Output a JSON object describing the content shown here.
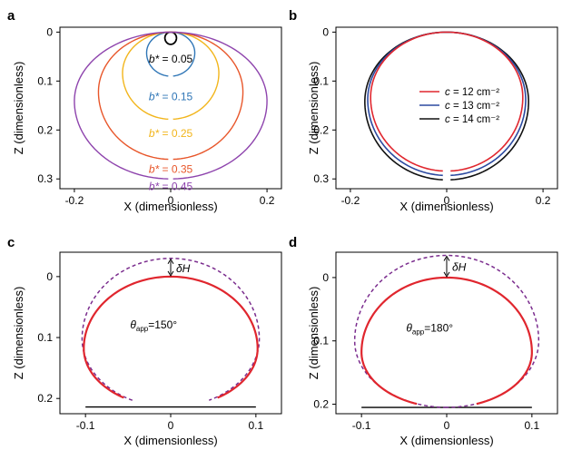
{
  "chart_data": [
    {
      "panel": "a",
      "type": "line",
      "xlabel": "X (dimensionless)",
      "ylabel": "Z (dimensionless)",
      "xlim": [
        -0.23,
        0.23
      ],
      "ylim": [
        0.32,
        -0.01
      ],
      "xticks": [
        -0.2,
        0,
        0.2
      ],
      "xtick_labels": [
        "-0.2",
        "0",
        "0.2"
      ],
      "yticks": [
        0,
        0.1,
        0.2,
        0.3
      ],
      "ytick_labels": [
        "0",
        "0.1",
        "0.2",
        "0.3"
      ],
      "series": [
        {
          "name": "b* = 0.05",
          "label_sym": "b*",
          "label_val": " = 0.05",
          "b": 0.05,
          "half_width": 0.012,
          "depth": 0.025,
          "color": "#000000",
          "label_pos": [
            0.0,
            0.055
          ]
        },
        {
          "name": "b* = 0.15",
          "label_sym": "b*",
          "label_val": " = 0.15",
          "b": 0.15,
          "half_width": 0.05,
          "depth": 0.09,
          "color": "#2e75b6",
          "label_pos": [
            0.0,
            0.132
          ]
        },
        {
          "name": "b* = 0.25",
          "label_sym": "b*",
          "label_val": " = 0.25",
          "b": 0.25,
          "half_width": 0.1,
          "depth": 0.178,
          "color": "#f2b51b",
          "label_pos": [
            0.0,
            0.207
          ]
        },
        {
          "name": "b* = 0.35",
          "label_sym": "b*",
          "label_val": " = 0.35",
          "b": 0.35,
          "half_width": 0.15,
          "depth": 0.26,
          "color": "#e8562a",
          "label_pos": [
            0.0,
            0.28
          ]
        },
        {
          "name": "b* = 0.45",
          "label_sym": "b*",
          "label_val": " = 0.45",
          "b": 0.45,
          "half_width": 0.2,
          "depth": 0.3,
          "color": "#8e44ad",
          "label_pos": [
            0.0,
            0.315
          ]
        }
      ]
    },
    {
      "panel": "b",
      "type": "line",
      "xlabel": "X (dimensionless)",
      "ylabel": "Z (dimensionless)",
      "xlim": [
        -0.23,
        0.23
      ],
      "ylim": [
        0.32,
        -0.01
      ],
      "xticks": [
        -0.2,
        0,
        0.2
      ],
      "xtick_labels": [
        "-0.2",
        "0",
        "0.2"
      ],
      "yticks": [
        0,
        0.1,
        0.2,
        0.3
      ],
      "ytick_labels": [
        "0",
        "0.1",
        "0.2",
        "0.3"
      ],
      "legend_position": "center",
      "series": [
        {
          "name": "c = 12 cm⁻²",
          "label_sym": "c",
          "label_val": " = 12 cm⁻²",
          "c": 12,
          "half_width": 0.158,
          "depth": 0.284,
          "color": "#e0262e"
        },
        {
          "name": "c = 13 cm⁻²",
          "label_sym": "c",
          "label_val": " = 13 cm⁻²",
          "c": 13,
          "half_width": 0.164,
          "depth": 0.293,
          "color": "#2c4aa0"
        },
        {
          "name": "c = 14 cm⁻²",
          "label_sym": "c",
          "label_val": " = 14 cm⁻²",
          "c": 14,
          "half_width": 0.17,
          "depth": 0.302,
          "color": "#111111"
        }
      ]
    },
    {
      "panel": "c",
      "type": "line",
      "xlabel": "X (dimensionless)",
      "ylabel": "Z (dimensionless)",
      "xlim": [
        -0.13,
        0.13
      ],
      "ylim": [
        0.225,
        -0.04
      ],
      "xticks": [
        -0.1,
        0,
        0.1
      ],
      "xtick_labels": [
        "-0.1",
        "0",
        "0.1"
      ],
      "yticks": [
        0,
        0.1,
        0.2
      ],
      "ytick_labels": [
        "0",
        "0.1",
        "0.2"
      ],
      "annotation_dh": "δH",
      "theta_sym": "θ",
      "theta_sub": "app",
      "theta_value": "=150°",
      "theta_deg": 150,
      "substrate_z": 0.214,
      "solid": {
        "color": "#e0262e",
        "half_width": 0.102,
        "top": 0.0,
        "bottom": 0.214,
        "contact_half": 0.055,
        "center_z": 0.118
      },
      "dashed": {
        "color": "#7b2d8e",
        "half_width": 0.104,
        "top": -0.03,
        "bottom": 0.214,
        "contact_half": 0.045,
        "center_z": 0.102
      }
    },
    {
      "panel": "d",
      "type": "line",
      "xlabel": "X (dimensionless)",
      "ylabel": "Z (dimensionless)",
      "xlim": [
        -0.13,
        0.13
      ],
      "ylim": [
        0.215,
        -0.04
      ],
      "xticks": [
        -0.1,
        0,
        0.1
      ],
      "xtick_labels": [
        "-0.1",
        "0",
        "0.1"
      ],
      "yticks": [
        0,
        0.1,
        0.2
      ],
      "ytick_labels": [
        "0",
        "0.1",
        "0.2"
      ],
      "annotation_dh": "δH",
      "theta_sym": "θ",
      "theta_sub": "app",
      "theta_value": "=180°",
      "theta_deg": 180,
      "substrate_z": 0.205,
      "solid": {
        "color": "#e0262e",
        "half_width": 0.1,
        "top": 0.0,
        "bottom": 0.205,
        "contact_half": 0.035,
        "center_z": 0.118
      },
      "dashed": {
        "color": "#7b2d8e",
        "half_width": 0.108,
        "top": -0.035,
        "bottom": 0.205,
        "contact_half": 0.0,
        "center_z": 0.1
      }
    }
  ]
}
